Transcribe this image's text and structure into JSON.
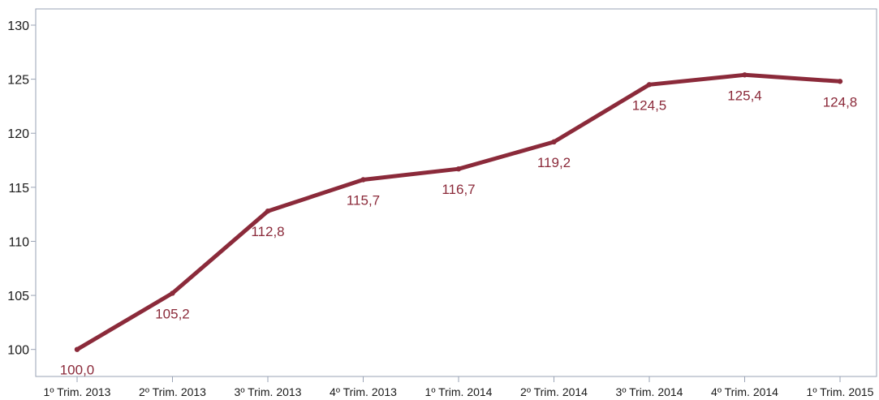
{
  "chart_data": {
    "type": "line",
    "title": "",
    "xlabel": "",
    "ylabel": "",
    "categories": [
      "1º Trim. 2013",
      "2º Trim. 2013",
      "3º Trim. 2013",
      "4º Trim. 2013",
      "1º Trim. 2014",
      "2º Trim. 2014",
      "3º Trim. 2014",
      "4º Trim. 2014",
      "1º Trim. 2015"
    ],
    "series": [
      {
        "values": [
          100.0,
          105.2,
          112.8,
          115.7,
          116.7,
          119.2,
          124.5,
          125.4,
          124.8
        ],
        "data_labels": [
          "100,0",
          "105,2",
          "112,8",
          "115,7",
          "116,7",
          "119,2",
          "124,5",
          "125,4",
          "124,8"
        ]
      }
    ],
    "y_ticks": [
      100,
      105,
      110,
      115,
      120,
      125,
      130
    ],
    "y_tick_labels": [
      "100",
      "105",
      "110",
      "115",
      "120",
      "125",
      "130"
    ],
    "ylim": [
      97.5,
      131.5
    ],
    "grid": false,
    "legend": "none",
    "colors": {
      "series": "#8b2a3a",
      "data_label": "#8b2a3a",
      "frame": "#9aa3b5"
    }
  }
}
